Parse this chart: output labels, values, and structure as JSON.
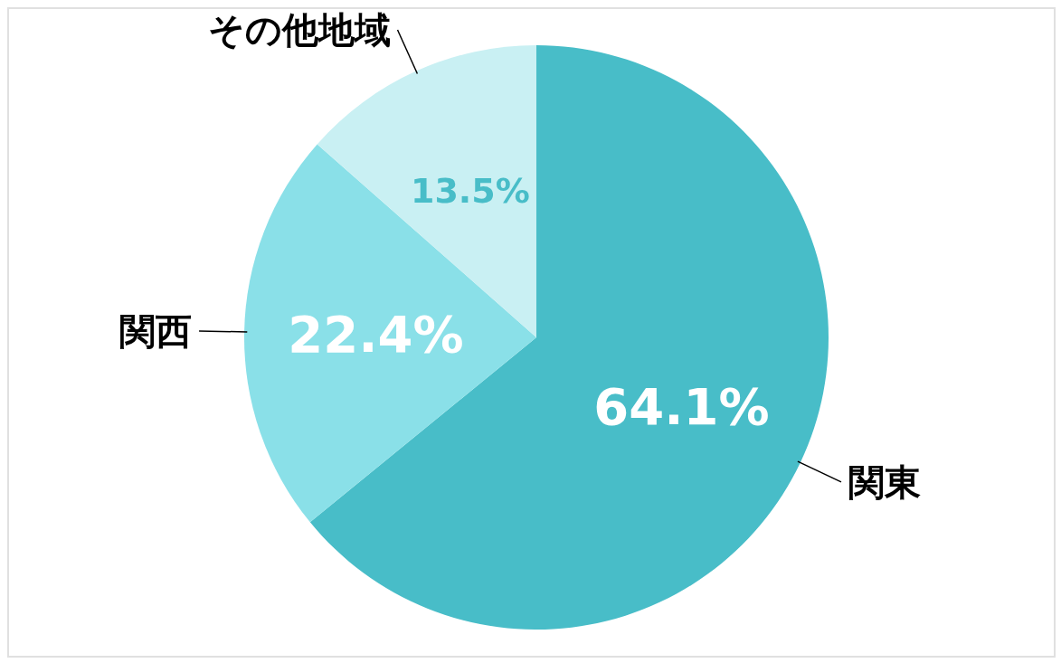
{
  "chart_data": {
    "type": "pie",
    "categories": [
      "関東",
      "関西",
      "その他地域"
    ],
    "values": [
      64.1,
      22.4,
      13.5
    ],
    "colors": [
      "#48bdc8",
      "#8ae0e8",
      "#c9f0f3"
    ],
    "value_labels": [
      "64.1%",
      "22.4%",
      "13.5%"
    ]
  }
}
